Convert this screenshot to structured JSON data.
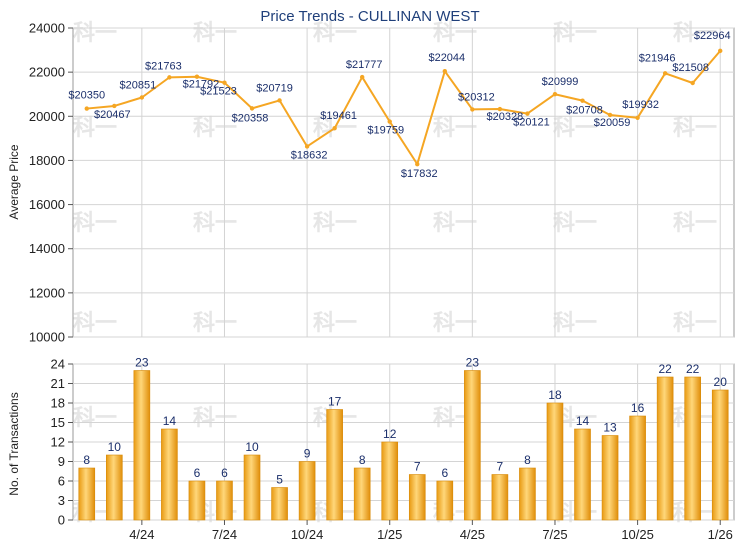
{
  "chart_data": [
    {
      "type": "line",
      "title": "Price Trends - CULLINAN WEST",
      "ylabel": "Average Price",
      "ylim": [
        10000,
        24000
      ],
      "yticks": [
        10000,
        12000,
        14000,
        16000,
        18000,
        20000,
        22000,
        24000
      ],
      "grid": true,
      "color": "#f5a623",
      "values": [
        20350,
        20467,
        20851,
        21763,
        21792,
        21523,
        20358,
        20719,
        18632,
        19461,
        21777,
        19759,
        17832,
        22044,
        20312,
        20328,
        20121,
        20999,
        20708,
        20059,
        19932,
        21946,
        21508,
        22964
      ],
      "labels": [
        "$20350",
        "$20467",
        "$20851",
        "$21763",
        "$21792",
        "$21523",
        "$20358",
        "$20719",
        "$18632",
        "$19461",
        "$21777",
        "$19759",
        "$17832",
        "$22044",
        "$20312",
        "$20328",
        "$20121",
        "$20999",
        "$20708",
        "$20059",
        "$19932",
        "$21946",
        "$21508",
        "$22964"
      ]
    },
    {
      "type": "bar",
      "ylabel": "No. of Transactions",
      "ylim": [
        0,
        24
      ],
      "yticks": [
        0,
        3,
        6,
        9,
        12,
        15,
        18,
        21,
        24
      ],
      "grid": true,
      "color": "#f5a623",
      "values": [
        8,
        10,
        23,
        14,
        6,
        6,
        10,
        5,
        9,
        17,
        8,
        12,
        7,
        6,
        23,
        7,
        8,
        18,
        14,
        13,
        16,
        22,
        22,
        20
      ],
      "xticks": [
        "4/24",
        "7/24",
        "10/24",
        "1/25",
        "4/25",
        "7/25",
        "10/25",
        "1/26"
      ],
      "xtick_positions": [
        2,
        5,
        8,
        11,
        14,
        17,
        20,
        23
      ]
    }
  ],
  "watermark": "科一"
}
